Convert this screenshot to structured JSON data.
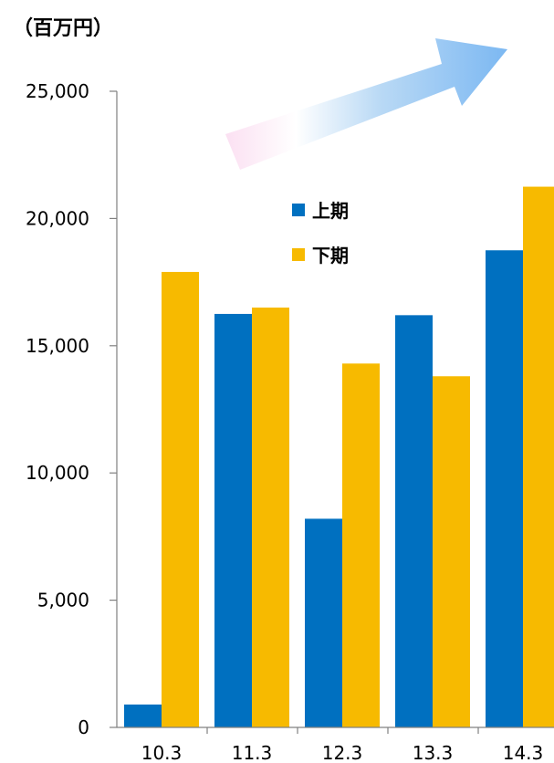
{
  "chart_data": {
    "type": "bar",
    "unit_label": "（百万円）",
    "categories": [
      "10.3",
      "11.3",
      "12.3",
      "13.3",
      "14.3"
    ],
    "series": [
      {
        "name": "上期",
        "color": "#0070C0",
        "values": [
          900,
          16250,
          8200,
          16200,
          18750
        ]
      },
      {
        "name": "下期",
        "color": "#F7BA00",
        "values": [
          17900,
          16500,
          14300,
          13800,
          21250
        ]
      }
    ],
    "y_ticks": [
      "0",
      "5,000",
      "10,000",
      "15,000",
      "20,000",
      "25,000"
    ],
    "ylim": [
      0,
      25000
    ],
    "grid": false,
    "legend_position": "center-top",
    "decoration": "upward-trend-arrow"
  }
}
